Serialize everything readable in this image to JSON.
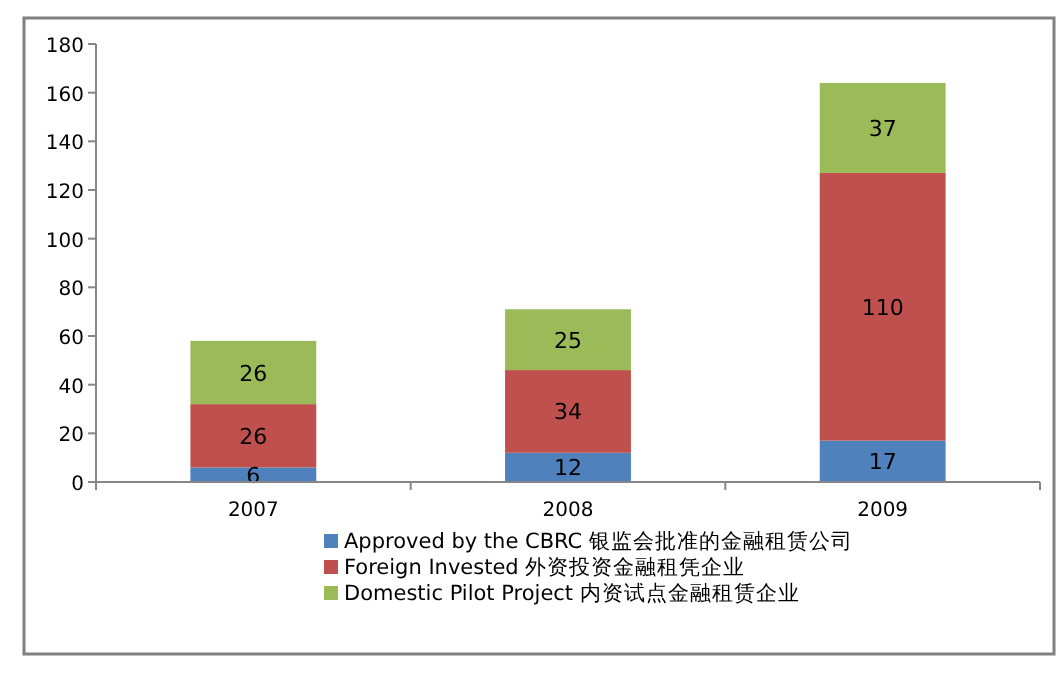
{
  "chart_data": {
    "type": "bar",
    "stacked": true,
    "categories": [
      "2007",
      "2008",
      "2009"
    ],
    "series": [
      {
        "name": "Approved by the CBRC 银监会批准的金融租赁公司",
        "color": "#4f81bd",
        "values": [
          6,
          12,
          17
        ]
      },
      {
        "name": "Foreign Invested 外资投资金融租凭企业",
        "color": "#c0504d",
        "values": [
          26,
          34,
          110
        ]
      },
      {
        "name": "Domestic  Pilot Project 内资试点金融租赁企业",
        "color": "#9bbb59",
        "values": [
          26,
          25,
          37
        ]
      }
    ],
    "ylim": [
      0,
      180
    ],
    "yticks": [
      0,
      20,
      40,
      60,
      80,
      100,
      120,
      140,
      160,
      180
    ],
    "grid": false,
    "legend": "bottom",
    "data_labels": true
  }
}
